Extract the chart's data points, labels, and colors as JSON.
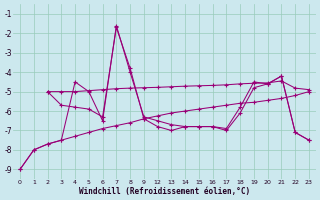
{
  "bg_color": "#cce8ee",
  "grid_color": "#99ccbb",
  "line_color": "#990077",
  "ylim": [
    -9.5,
    -0.5
  ],
  "yticks": [
    -9,
    -8,
    -7,
    -6,
    -5,
    -4,
    -3,
    -2,
    -1
  ],
  "xlabel": "Windchill (Refroidissement éolien,°C)",
  "x_labels": [
    "0",
    "1",
    "2",
    "3",
    "4",
    "5",
    "6",
    "7",
    "8",
    "9",
    "12",
    "13",
    "14",
    "15",
    "16",
    "17",
    "18",
    "19",
    "20",
    "21",
    "22",
    "23"
  ],
  "series": [
    {
      "xi": [
        0,
        1,
        2,
        3,
        4,
        5,
        6,
        7,
        8,
        9,
        10,
        11,
        12,
        13,
        14,
        15,
        16,
        17,
        18,
        19,
        20,
        21
      ],
      "y": [
        -9.0,
        -8.0,
        -7.7,
        -7.5,
        -7.3,
        -7.1,
        -6.9,
        -6.75,
        -6.6,
        -6.4,
        -6.25,
        -6.1,
        -6.0,
        -5.9,
        -5.8,
        -5.7,
        -5.6,
        -5.55,
        -5.45,
        -5.35,
        -5.2,
        -5.0
      ]
    },
    {
      "xi": [
        0,
        1,
        2,
        3,
        4,
        5,
        6,
        7,
        8,
        9,
        10,
        11,
        12,
        13,
        14,
        15,
        16,
        17,
        18,
        19,
        20,
        21
      ],
      "y": [
        -9.0,
        -8.0,
        -7.7,
        -7.5,
        -4.5,
        -5.0,
        -6.5,
        -1.6,
        -4.0,
        -6.3,
        -6.5,
        -6.7,
        -6.8,
        -6.8,
        -6.8,
        -6.9,
        -5.8,
        -4.5,
        -4.6,
        -4.2,
        -7.1,
        -7.5
      ]
    },
    {
      "xi": [
        2,
        3,
        4,
        5,
        6,
        7,
        8,
        9,
        10,
        11,
        12,
        13,
        14,
        15,
        16,
        17,
        18,
        19,
        20,
        21
      ],
      "y": [
        -5.0,
        -5.0,
        -5.0,
        -4.95,
        -4.9,
        -4.85,
        -4.82,
        -4.8,
        -4.78,
        -4.75,
        -4.72,
        -4.7,
        -4.68,
        -4.65,
        -4.6,
        -4.57,
        -4.55,
        -4.45,
        -4.82,
        -4.9
      ]
    },
    {
      "xi": [
        2,
        3,
        4,
        5,
        6,
        7,
        8,
        9,
        10,
        11,
        12,
        13,
        14,
        15,
        16,
        17,
        18,
        19,
        20,
        21
      ],
      "y": [
        -5.0,
        -5.7,
        -5.8,
        -5.9,
        -6.3,
        -1.7,
        -3.8,
        -6.4,
        -6.8,
        -7.0,
        -6.8,
        -6.8,
        -6.8,
        -7.0,
        -6.1,
        -4.8,
        -4.6,
        -4.2,
        -7.1,
        -7.5
      ]
    }
  ]
}
